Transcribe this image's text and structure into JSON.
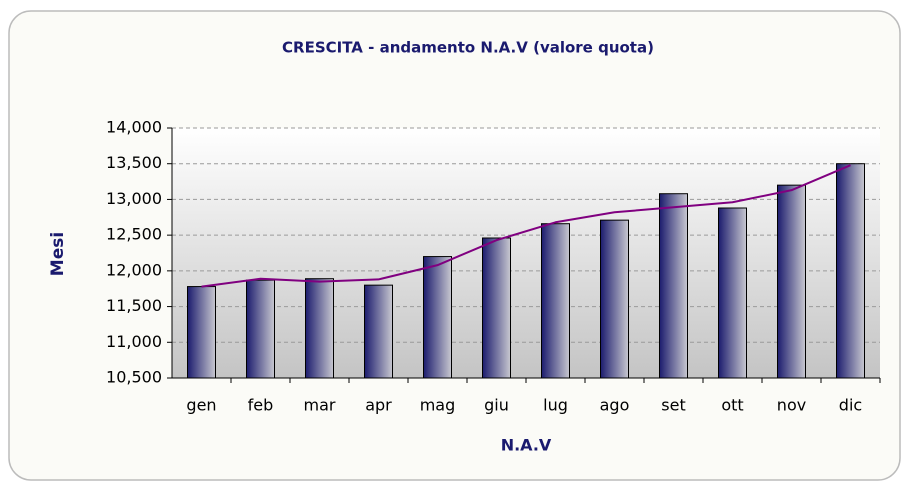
{
  "chart_data": {
    "type": "bar",
    "title": "CRESCITA - andamento N.A.V (valore quota)",
    "y_label": "Mesi",
    "x_label": "N.A.V",
    "categories": [
      "gen",
      "feb",
      "mar",
      "apr",
      "mag",
      "giu",
      "lug",
      "ago",
      "set",
      "ott",
      "nov",
      "dic"
    ],
    "values": [
      11780,
      11870,
      11890,
      11800,
      12200,
      12460,
      12660,
      12710,
      13080,
      12880,
      13200,
      13500
    ],
    "trend_values": [
      11780,
      11890,
      11850,
      11880,
      12080,
      12430,
      12680,
      12820,
      12890,
      12960,
      13130,
      13480
    ],
    "color": "#1c1c6e",
    "trend_color": "#800080",
    "ylim": [
      10500,
      14000
    ],
    "yticks": [
      {
        "value": 10500,
        "label": "10,500"
      },
      {
        "value": 11000,
        "label": "11,000"
      },
      {
        "value": 11500,
        "label": "11,500"
      },
      {
        "value": 12000,
        "label": "12,000"
      },
      {
        "value": 12500,
        "label": "12,500"
      },
      {
        "value": 13000,
        "label": "13,000"
      },
      {
        "value": 13500,
        "label": "13,500"
      },
      {
        "value": 14000,
        "label": "14,000"
      }
    ],
    "grid": true
  }
}
